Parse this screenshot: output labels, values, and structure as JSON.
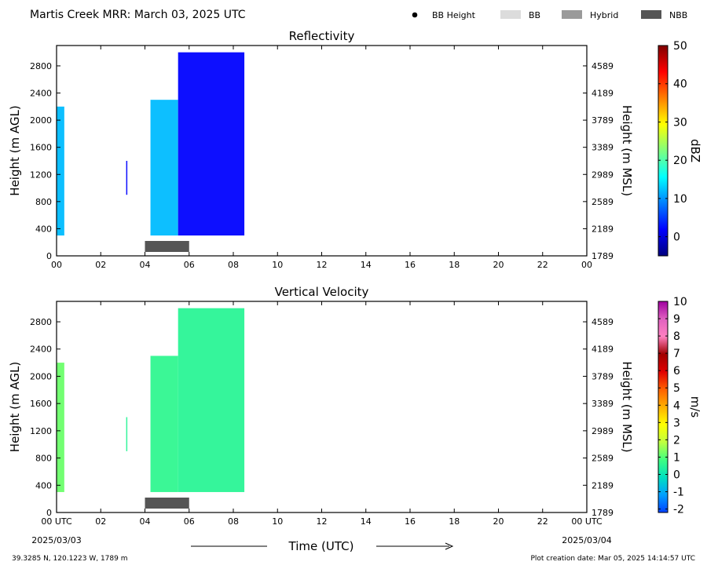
{
  "header": {
    "title": "Martis Creek MRR:  March 03, 2025 UTC",
    "legend": [
      {
        "label": "BB Height",
        "kind": "dot",
        "color": "#000000"
      },
      {
        "label": "BB",
        "kind": "box",
        "color": "#dcdcdc"
      },
      {
        "label": "Hybrid",
        "kind": "box",
        "color": "#9a9a9a"
      },
      {
        "label": "NBB",
        "kind": "box",
        "color": "#555555"
      }
    ]
  },
  "footer": {
    "location": "39.3285 N, 120.1223 W, 1789 m",
    "creation": "Plot creation date: Mar 05, 2025 14:14:57 UTC",
    "xlabel": "Time (UTC)",
    "start_date": "2025/03/03",
    "end_date": "2025/03/04"
  },
  "chart_data": [
    {
      "type": "heatmap",
      "title": "Reflectivity",
      "ylabel": "Height (m AGL)",
      "ylabel_right": "Height (m MSL)",
      "x_ticks": [
        "00",
        "02",
        "04",
        "06",
        "08",
        "10",
        "12",
        "14",
        "16",
        "18",
        "20",
        "22",
        "00"
      ],
      "x_range_hours": [
        0,
        24
      ],
      "ylim": [
        0,
        3100
      ],
      "y_ticks": [
        0,
        400,
        800,
        1200,
        1600,
        2000,
        2400,
        2800
      ],
      "y_ticks_right": [
        "1789",
        "2189",
        "2589",
        "2989",
        "3389",
        "3789",
        "4189",
        "4589"
      ],
      "colorbar": {
        "label": "dBZ",
        "min": -5,
        "max": 50,
        "ticks": [
          "0",
          "10",
          "20",
          "30",
          "40",
          "50"
        ],
        "tick_values": [
          0,
          10,
          20,
          30,
          40,
          50
        ],
        "stops": [
          "#00007f",
          "#0000ff",
          "#007fff",
          "#00ffff",
          "#7fff7f",
          "#ffff00",
          "#ff7f00",
          "#ff0000",
          "#7f0000"
        ]
      },
      "bright_band": [
        {
          "kind": "NBB",
          "start_hour": 4.0,
          "end_hour": 6.0
        }
      ],
      "echo_regions": [
        {
          "start_hour": 0.0,
          "end_hour": 0.35,
          "base_m": 300,
          "top_m": 2200,
          "value": 12
        },
        {
          "start_hour": 3.15,
          "end_hour": 3.2,
          "base_m": 900,
          "top_m": 1400,
          "value": 2
        },
        {
          "start_hour": 4.25,
          "end_hour": 5.5,
          "base_m": 300,
          "top_m": 2300,
          "value": 12
        },
        {
          "start_hour": 5.5,
          "end_hour": 8.5,
          "base_m": 300,
          "top_m": 3000,
          "value": 2
        }
      ]
    },
    {
      "type": "heatmap",
      "title": "Vertical Velocity",
      "ylabel": "Height (m AGL)",
      "ylabel_right": "Height (m MSL)",
      "x_ticks": [
        "00 UTC",
        "02",
        "04",
        "06",
        "08",
        "10",
        "12",
        "14",
        "16",
        "18",
        "20",
        "22",
        "00 UTC"
      ],
      "x_range_hours": [
        0,
        24
      ],
      "ylim": [
        0,
        3100
      ],
      "y_ticks": [
        0,
        400,
        800,
        1200,
        1600,
        2000,
        2400,
        2800
      ],
      "y_ticks_right": [
        "1789",
        "2189",
        "2589",
        "2989",
        "3389",
        "3789",
        "4189",
        "4589"
      ],
      "colorbar": {
        "label": "m/s",
        "min": -2.2,
        "max": 10,
        "ticks": [
          "-2",
          "-1",
          "0",
          "1",
          "2",
          "3",
          "4",
          "5",
          "6",
          "7",
          "8",
          "9",
          "10"
        ],
        "tick_values": [
          -2,
          -1,
          0,
          1,
          2,
          3,
          4,
          5,
          6,
          7,
          8,
          9,
          10
        ],
        "stops": [
          "#0040ff",
          "#00a0ff",
          "#00e0c0",
          "#40ff80",
          "#c0ff40",
          "#ffff00",
          "#ffb000",
          "#ff6000",
          "#e00000",
          "#a00000",
          "#ff80c0",
          "#e060c0",
          "#a000a0"
        ]
      },
      "bright_band": [
        {
          "kind": "NBB",
          "start_hour": 4.0,
          "end_hour": 6.0
        }
      ],
      "echo_regions": [
        {
          "start_hour": 0.0,
          "end_hour": 0.35,
          "base_m": 300,
          "top_m": 2200,
          "value": 1.2
        },
        {
          "start_hour": 3.15,
          "end_hour": 3.2,
          "base_m": 900,
          "top_m": 1400,
          "value": 0.5
        },
        {
          "start_hour": 4.25,
          "end_hour": 5.5,
          "base_m": 300,
          "top_m": 2300,
          "value": 0.6
        },
        {
          "start_hour": 5.5,
          "end_hour": 8.5,
          "base_m": 300,
          "top_m": 3000,
          "value": 0.5
        }
      ]
    }
  ]
}
